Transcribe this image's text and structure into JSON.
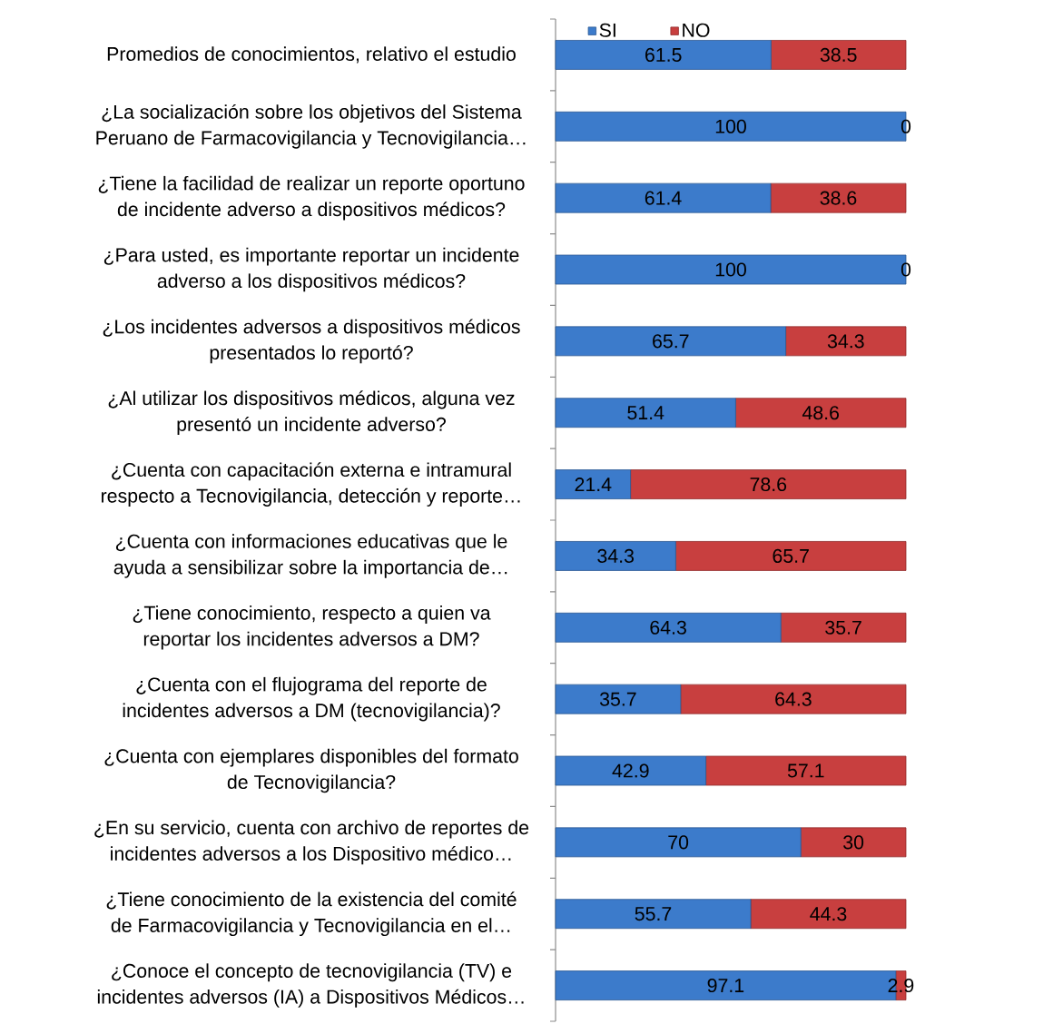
{
  "chart_data": {
    "type": "bar",
    "orientation": "horizontal",
    "stacked": true,
    "categories": [
      "Promedios de conocimientos, relativo el estudio",
      "¿La socialización sobre los objetivos del Sistema Peruano de Farmacovigilancia y Tecnovigilancia…",
      "¿Tiene la facilidad de realizar un reporte oportuno de incidente adverso a dispositivos médicos?",
      "¿Para usted, es importante reportar un incidente adverso a los dispositivos médicos?",
      "¿Los incidentes adversos a dispositivos médicos presentados lo reportó?",
      "¿Al utilizar los dispositivos médicos, alguna vez presentó un incidente adverso?",
      "¿Cuenta con capacitación externa e intramural respecto a Tecnovigilancia, detección y reporte…",
      "¿Cuenta con informaciones educativas que le ayuda a sensibilizar sobre la importancia de…",
      "¿Tiene conocimiento, respecto a quien va reportar los incidentes adversos a DM?",
      "¿Cuenta con el flujograma del reporte de incidentes adversos a DM (tecnovigilancia)?",
      "¿Cuenta con ejemplares disponibles del formato de Tecnovigilancia?",
      "¿En su servicio, cuenta con archivo de reportes de incidentes adversos a los Dispositivo médico…",
      "¿Tiene conocimiento de la existencia del comité de Farmacovigilancia y Tecnovigilancia en el…",
      "¿Conoce el concepto de tecnovigilancia (TV) e incidentes adversos (IA) a Dispositivos Médicos…"
    ],
    "series": [
      {
        "name": "SI",
        "color": "#3c7bcb",
        "values": [
          61.5,
          100,
          61.4,
          100,
          65.7,
          51.4,
          21.4,
          34.3,
          64.3,
          35.7,
          42.9,
          70,
          55.7,
          97.1
        ]
      },
      {
        "name": "NO",
        "color": "#c83f3f",
        "values": [
          38.5,
          0,
          38.6,
          0,
          34.3,
          48.6,
          78.6,
          65.7,
          35.7,
          64.3,
          57.1,
          30,
          44.3,
          2.9
        ]
      }
    ],
    "xlim": [
      0,
      100
    ],
    "data_labels": true,
    "legend": "top left",
    "tick_labels": "y"
  }
}
